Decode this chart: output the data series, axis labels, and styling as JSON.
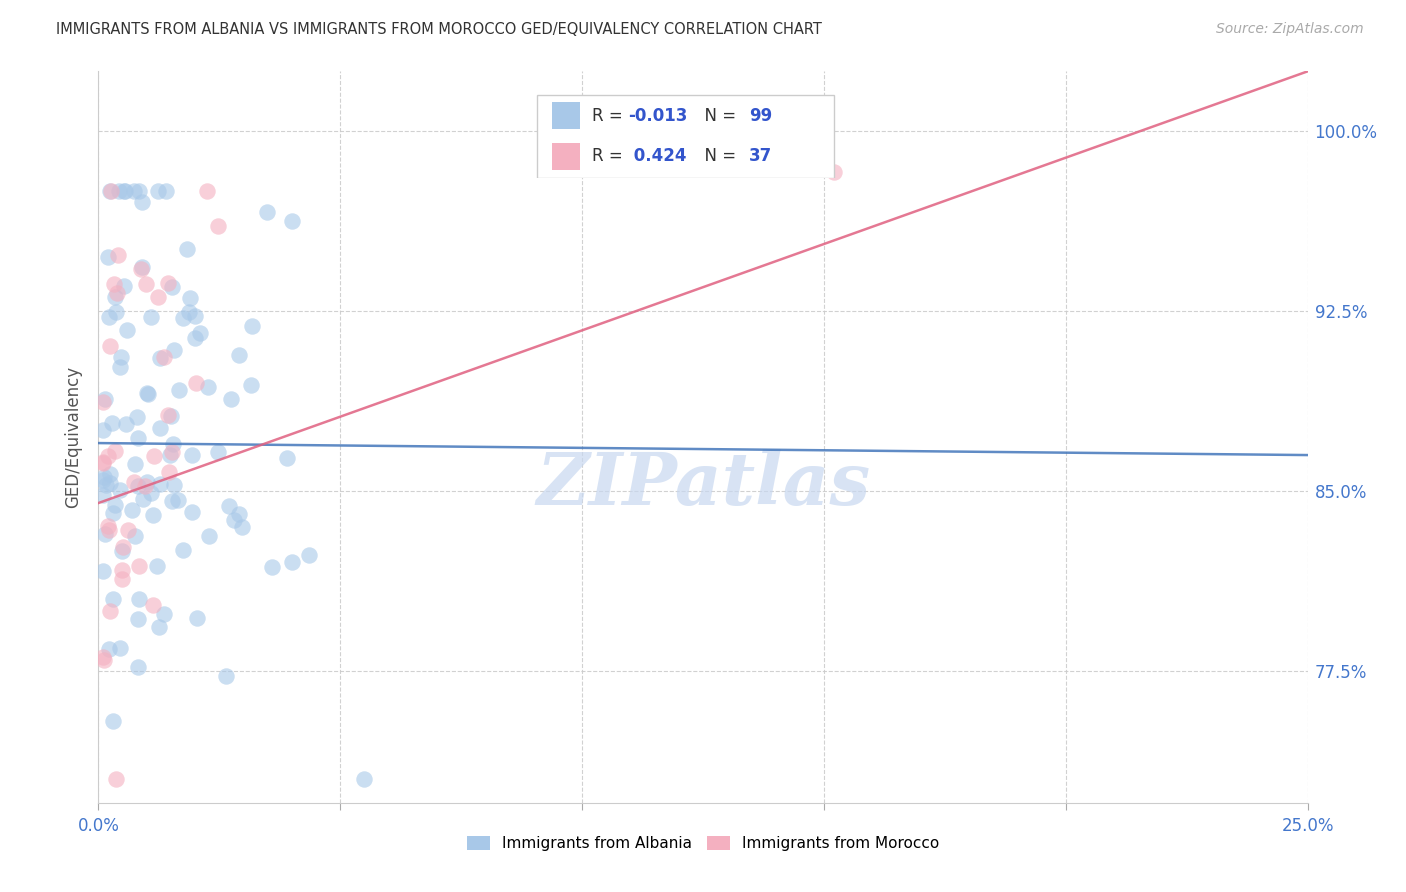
{
  "title": "IMMIGRANTS FROM ALBANIA VS IMMIGRANTS FROM MOROCCO GED/EQUIVALENCY CORRELATION CHART",
  "source": "Source: ZipAtlas.com",
  "ylabel_label": "GED/Equivalency",
  "legend_albania": "Immigrants from Albania",
  "legend_morocco": "Immigrants from Morocco",
  "R_albania": "-0.013",
  "N_albania": "99",
  "R_morocco": "0.424",
  "N_morocco": "37",
  "color_albania": "#a8c8e8",
  "color_morocco": "#f4b0c0",
  "color_line_albania": "#4477bb",
  "color_line_morocco": "#e06080",
  "xlim": [
    0.0,
    0.25
  ],
  "ylim": [
    0.72,
    1.025
  ],
  "yticks": [
    0.775,
    0.85,
    0.925,
    1.0
  ],
  "ytick_labels": [
    "77.5%",
    "85.0%",
    "92.5%",
    "100.0%"
  ],
  "xtick_labels": [
    "0.0%",
    "",
    "",
    "",
    "",
    "25.0%"
  ],
  "xticks": [
    0.0,
    0.05,
    0.1,
    0.15,
    0.2,
    0.25
  ],
  "color_tick_label": "#4477cc",
  "watermark_color": "#c8d8f0",
  "watermark_text": "ZIPatlas",
  "seed": 12345
}
